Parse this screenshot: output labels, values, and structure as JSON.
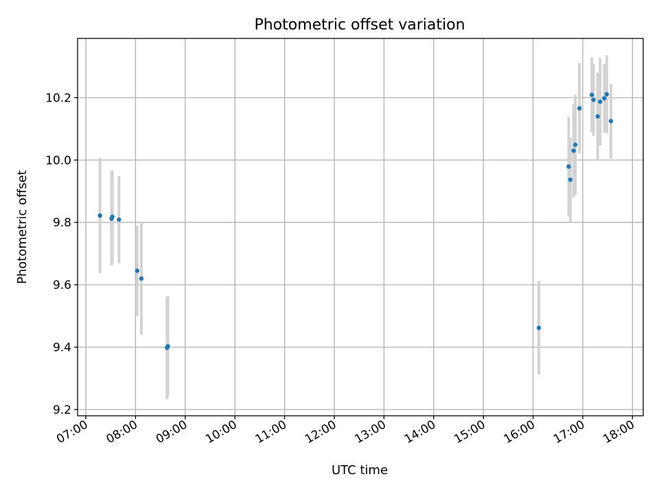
{
  "chart_data": {
    "type": "scatter",
    "title": "Photometric offset variation",
    "xlabel": "UTC time",
    "ylabel": "Photometric offset",
    "x_axis": {
      "kind": "time",
      "range": [
        "06:50",
        "18:13"
      ],
      "ticks": [
        "07:00",
        "08:00",
        "09:00",
        "10:00",
        "11:00",
        "12:00",
        "13:00",
        "14:00",
        "15:00",
        "16:00",
        "17:00",
        "18:00"
      ]
    },
    "y_axis": {
      "range": [
        9.18,
        10.39
      ],
      "ticks": [
        9.2,
        9.4,
        9.6,
        9.8,
        10.0,
        10.2
      ],
      "tick_labels": [
        "9.2",
        "9.4",
        "9.6",
        "9.8",
        "10.0",
        "10.2"
      ]
    },
    "grid": true,
    "marker_color": "#1f77b4",
    "errorbar_color": "#d3d3d3",
    "series": [
      {
        "points": [
          {
            "x": "07:17",
            "y": 9.822,
            "err": 0.185
          },
          {
            "x": "07:31",
            "y": 9.812,
            "err": 0.15
          },
          {
            "x": "07:32",
            "y": 9.818,
            "err": 0.15
          },
          {
            "x": "07:40",
            "y": 9.809,
            "err": 0.14
          },
          {
            "x": "08:02",
            "y": 9.645,
            "err": 0.145
          },
          {
            "x": "08:07",
            "y": 9.62,
            "err": 0.18
          },
          {
            "x": "08:38",
            "y": 9.398,
            "err": 0.165
          },
          {
            "x": "08:39",
            "y": 9.403,
            "err": 0.16
          },
          {
            "x": "16:07",
            "y": 9.462,
            "err": 0.15
          },
          {
            "x": "16:43",
            "y": 9.979,
            "err": 0.16
          },
          {
            "x": "16:45",
            "y": 9.937,
            "err": 0.135
          },
          {
            "x": "16:49",
            "y": 10.03,
            "err": 0.15
          },
          {
            "x": "16:51",
            "y": 10.049,
            "err": 0.16
          },
          {
            "x": "16:56",
            "y": 10.166,
            "err": 0.145
          },
          {
            "x": "17:11",
            "y": 10.209,
            "err": 0.12
          },
          {
            "x": "17:13",
            "y": 10.193,
            "err": 0.115
          },
          {
            "x": "17:18",
            "y": 10.14,
            "err": 0.14
          },
          {
            "x": "17:21",
            "y": 10.187,
            "err": 0.14
          },
          {
            "x": "17:26",
            "y": 10.198,
            "err": 0.11
          },
          {
            "x": "17:29",
            "y": 10.211,
            "err": 0.125
          },
          {
            "x": "17:34",
            "y": 10.125,
            "err": 0.12
          }
        ]
      }
    ]
  }
}
